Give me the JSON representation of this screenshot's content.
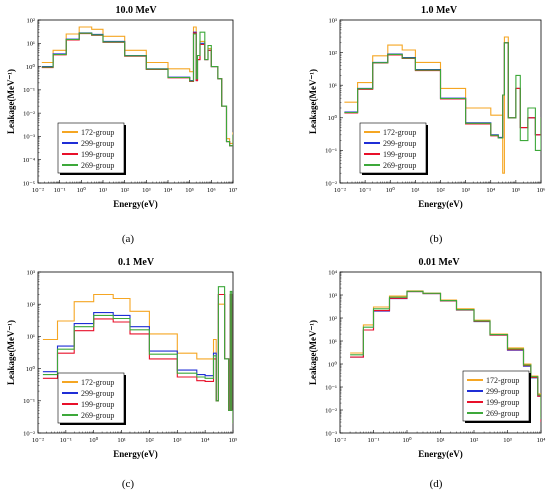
{
  "legend_order": [
    "172-group",
    "299-group",
    "199-group",
    "269-group"
  ],
  "chart_data": [
    {
      "type": "line",
      "title": "10.0 MeV",
      "xlabel": "Energy(eV)",
      "ylabel": "Leakage(MeV⁻¹)",
      "caption": "(a)",
      "x_log": true,
      "y_log": true,
      "xlim": [
        0.01,
        10000000
      ],
      "ylim": [
        1e-05,
        100
      ],
      "xticks": [
        "10⁻²",
        "10⁻¹",
        "10⁰",
        "10¹",
        "10²",
        "10³",
        "10⁴",
        "10⁵",
        "10⁶",
        "10⁷"
      ],
      "yticks": [
        "10⁻⁵",
        "10⁻⁴",
        "10⁻³",
        "10⁻²",
        "10⁻¹",
        "10⁰",
        "10¹",
        "10²"
      ],
      "legend": "lower-left",
      "series": [
        {
          "name": "172-group",
          "color": "#f5a623",
          "x": [
            0.015,
            0.05,
            0.2,
            0.8,
            3,
            10,
            100,
            1000,
            10000,
            100000,
            150000,
            200000,
            230000,
            300000,
            500000,
            700000,
            1000000,
            2000000,
            3000000,
            5000000,
            7000000,
            10000000
          ],
          "y": [
            1.5,
            5,
            25,
            50,
            40,
            20,
            5,
            1.5,
            0.8,
            0.6,
            50,
            0.25,
            2,
            12,
            2,
            6,
            1,
            0.3,
            0.02,
            0.0008,
            0.0005,
            0.0015
          ]
        },
        {
          "name": "299-group",
          "color": "#1f2ed6",
          "x": [
            0.015,
            0.05,
            0.2,
            0.8,
            3,
            10,
            100,
            1000,
            10000,
            100000,
            150000,
            200000,
            230000,
            300000,
            500000,
            700000,
            1000000,
            2000000,
            3000000,
            5000000,
            7000000,
            10000000
          ],
          "y": [
            1,
            3.5,
            15,
            28,
            24,
            12,
            3,
            0.8,
            0.35,
            0.25,
            30,
            0.25,
            2,
            10,
            2,
            5,
            1,
            0.3,
            0.02,
            0.0006,
            0.0004,
            0.0012
          ]
        },
        {
          "name": "199-group",
          "color": "#e8102a",
          "x": [
            0.015,
            0.05,
            0.2,
            0.8,
            3,
            10,
            100,
            1000,
            10000,
            100000,
            150000,
            200000,
            230000,
            300000,
            500000,
            700000,
            1000000,
            2000000,
            3000000,
            5000000,
            7000000,
            10000000
          ],
          "y": [
            0.9,
            3.2,
            14,
            26,
            22,
            11,
            2.8,
            0.75,
            0.33,
            0.23,
            28,
            0.25,
            2,
            9,
            2,
            5,
            1,
            0.3,
            0.02,
            0.0006,
            0.0004,
            0.0012
          ]
        },
        {
          "name": "269-group",
          "color": "#3da83a",
          "x": [
            0.015,
            0.05,
            0.2,
            0.8,
            3,
            10,
            100,
            1000,
            10000,
            100000,
            150000,
            200000,
            230000,
            300000,
            500000,
            700000,
            1000000,
            2000000,
            3000000,
            5000000,
            7000000,
            10000000
          ],
          "y": [
            0.95,
            3.3,
            14.5,
            27,
            23,
            11.5,
            2.9,
            0.78,
            0.34,
            0.24,
            25,
            0.3,
            3,
            30,
            2,
            8,
            1,
            0.3,
            0.02,
            0.0006,
            0.0004,
            0.0012
          ]
        }
      ]
    },
    {
      "type": "line",
      "title": "1.0 MeV",
      "xlabel": "Energy(eV)",
      "ylabel": "Leakage(MeV⁻¹)",
      "caption": "(b)",
      "x_log": true,
      "y_log": true,
      "xlim": [
        0.01,
        1000000
      ],
      "ylim": [
        0.01,
        1000
      ],
      "xticks": [
        "10⁻²",
        "10⁻¹",
        "10⁰",
        "10¹",
        "10²",
        "10³",
        "10⁴",
        "10⁵",
        "10⁶"
      ],
      "yticks": [
        "10⁻²",
        "10⁻¹",
        "10⁰",
        "10¹",
        "10²",
        "10³"
      ],
      "legend": "lower-left",
      "series": [
        {
          "name": "172-group",
          "color": "#f5a623",
          "x": [
            0.015,
            0.05,
            0.2,
            0.8,
            3,
            10,
            100,
            1000,
            10000,
            20000,
            30000,
            35000,
            50000,
            100000,
            150000,
            300000,
            600000,
            1000000
          ],
          "y": [
            3,
            12,
            80,
            170,
            120,
            50,
            8,
            2,
            1.2,
            1.2,
            0.02,
            300,
            1,
            8,
            0.5,
            1,
            0.3,
            1
          ]
        },
        {
          "name": "299-group",
          "color": "#1f2ed6",
          "x": [
            0.015,
            0.05,
            0.2,
            0.8,
            3,
            10,
            100,
            1000,
            10000,
            20000,
            30000,
            35000,
            50000,
            100000,
            150000,
            300000,
            600000,
            1000000
          ],
          "y": [
            1.5,
            8,
            50,
            90,
            70,
            30,
            4,
            0.7,
            0.3,
            0.25,
            5,
            200,
            1,
            8,
            0.5,
            1,
            0.3,
            1
          ]
        },
        {
          "name": "199-group",
          "color": "#e8102a",
          "x": [
            0.015,
            0.05,
            0.2,
            0.8,
            3,
            10,
            100,
            1000,
            10000,
            20000,
            30000,
            35000,
            50000,
            100000,
            150000,
            300000,
            600000,
            1000000
          ],
          "y": [
            1.4,
            7.5,
            48,
            85,
            66,
            28,
            3.8,
            0.65,
            0.28,
            0.24,
            5,
            200,
            1,
            8,
            0.5,
            1,
            0.3,
            1
          ]
        },
        {
          "name": "269-group",
          "color": "#3da83a",
          "x": [
            0.015,
            0.05,
            0.2,
            0.8,
            3,
            10,
            100,
            1000,
            10000,
            20000,
            30000,
            35000,
            50000,
            100000,
            150000,
            300000,
            600000,
            1000000
          ],
          "y": [
            1.45,
            7.8,
            49,
            88,
            68,
            29,
            3.9,
            0.68,
            0.29,
            0.24,
            5,
            200,
            1,
            20,
            0.2,
            2,
            0.1,
            1
          ]
        }
      ]
    },
    {
      "type": "line",
      "title": "0.1 MeV",
      "xlabel": "Energy(eV)",
      "ylabel": "Leakage(MeV⁻¹)",
      "caption": "(c)",
      "x_log": true,
      "y_log": true,
      "xlim": [
        0.01,
        100000
      ],
      "ylim": [
        0.01,
        1000
      ],
      "xticks": [
        "10⁻²",
        "10⁻¹",
        "10⁰",
        "10¹",
        "10²",
        "10³",
        "10⁴",
        "10⁵"
      ],
      "yticks": [
        "10⁻²",
        "10⁻¹",
        "10⁰",
        "10¹",
        "10²",
        "10³"
      ],
      "legend": "lower-left",
      "series": [
        {
          "name": "172-group",
          "color": "#f5a623",
          "x": [
            0.015,
            0.05,
            0.2,
            1,
            5,
            20,
            100,
            1000,
            5000,
            10000,
            20000,
            25000,
            30000,
            50000,
            70000,
            80000,
            90000,
            100000
          ],
          "y": [
            8,
            30,
            120,
            200,
            150,
            60,
            12,
            3,
            2,
            2,
            8,
            0.1,
            100,
            2,
            0.05,
            100,
            0.05,
            0.02
          ]
        },
        {
          "name": "299-group",
          "color": "#1f2ed6",
          "x": [
            0.015,
            0.05,
            0.2,
            1,
            5,
            20,
            100,
            1000,
            5000,
            10000,
            20000,
            25000,
            30000,
            50000,
            70000,
            80000,
            90000,
            100000
          ],
          "y": [
            0.8,
            5,
            25,
            55,
            45,
            20,
            3.5,
            0.9,
            0.65,
            0.6,
            3,
            0.1,
            200,
            2,
            0.05,
            200,
            0.05,
            0.02
          ]
        },
        {
          "name": "199-group",
          "color": "#e8102a",
          "x": [
            0.015,
            0.05,
            0.2,
            1,
            5,
            20,
            100,
            1000,
            5000,
            10000,
            20000,
            25000,
            30000,
            50000,
            70000,
            80000,
            90000,
            100000
          ],
          "y": [
            0.5,
            3,
            15,
            35,
            28,
            12,
            2,
            0.55,
            0.42,
            0.4,
            2,
            0.1,
            200,
            2,
            0.05,
            200,
            0.05,
            0.02
          ]
        },
        {
          "name": "269-group",
          "color": "#3da83a",
          "x": [
            0.015,
            0.05,
            0.2,
            1,
            5,
            20,
            100,
            1000,
            5000,
            10000,
            20000,
            25000,
            30000,
            50000,
            70000,
            80000,
            90000,
            100000
          ],
          "y": [
            0.65,
            4,
            20,
            45,
            36,
            16,
            2.8,
            0.72,
            0.55,
            0.5,
            2.5,
            0.1,
            350,
            2,
            0.05,
            250,
            0.05,
            0.02
          ]
        }
      ]
    },
    {
      "type": "line",
      "title": "0.01 MeV",
      "xlabel": "Energy(eV)",
      "ylabel": "Leakage(MeV⁻¹)",
      "caption": "(d)",
      "x_log": true,
      "y_log": true,
      "xlim": [
        0.01,
        10000
      ],
      "ylim": [
        0.001,
        10000
      ],
      "xticks": [
        "10⁻²",
        "10⁻¹",
        "10⁰",
        "10¹",
        "10²",
        "10³",
        "10⁴"
      ],
      "yticks": [
        "10⁻³",
        "10⁻²",
        "10⁻¹",
        "10⁰",
        "10¹",
        "10²",
        "10³",
        "10⁴"
      ],
      "legend": "lower-right",
      "series": [
        {
          "name": "172-group",
          "color": "#f5a623",
          "x": [
            0.02,
            0.05,
            0.1,
            0.3,
            1,
            3,
            10,
            30,
            100,
            300,
            1000,
            3000,
            5000,
            8000,
            10000
          ],
          "y": [
            3,
            50,
            300,
            900,
            1500,
            1200,
            600,
            250,
            80,
            20,
            5,
            1,
            0.3,
            0.05,
            0.005
          ]
        },
        {
          "name": "299-group",
          "color": "#1f2ed6",
          "x": [
            0.02,
            0.05,
            0.1,
            0.3,
            1,
            3,
            10,
            30,
            100,
            300,
            1000,
            3000,
            5000,
            8000,
            10000
          ],
          "y": [
            2,
            30,
            200,
            700,
            1400,
            1150,
            550,
            220,
            70,
            18,
            4,
            0.8,
            0.25,
            0.04,
            0.003
          ]
        },
        {
          "name": "199-group",
          "color": "#e8102a",
          "x": [
            0.02,
            0.05,
            0.1,
            0.3,
            1,
            3,
            10,
            30,
            100,
            300,
            1000,
            3000,
            5000,
            8000,
            10000
          ],
          "y": [
            2,
            30,
            210,
            720,
            1400,
            1150,
            560,
            225,
            72,
            18,
            4.2,
            0.85,
            0.26,
            0.04,
            0.003
          ]
        },
        {
          "name": "269-group",
          "color": "#3da83a",
          "x": [
            0.02,
            0.05,
            0.1,
            0.3,
            1,
            3,
            10,
            30,
            100,
            300,
            1000,
            3000,
            5000,
            8000,
            10000
          ],
          "y": [
            2.5,
            40,
            250,
            800,
            1450,
            1180,
            570,
            230,
            75,
            19,
            4.5,
            0.9,
            0.28,
            0.045,
            0.004
          ]
        }
      ]
    }
  ]
}
